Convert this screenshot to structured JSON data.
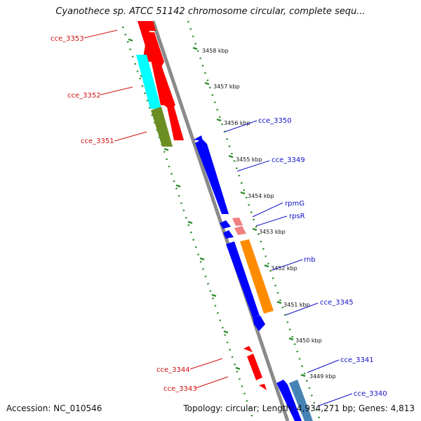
{
  "title": "Cyanothece sp. ATCC 51142 chromosome circular, complete sequ...",
  "footer": {
    "accession": "Accession: NC_010546",
    "summary": "Topology: circular; Length: 4,934,271 bp; Genes: 4,813"
  },
  "colors": {
    "backbone": "#8a8a8a",
    "scale_dots": "#2e8b2e",
    "red": "#ff0000",
    "cyan": "#00ffff",
    "olive": "#6b8e23",
    "blue": "#0000ff",
    "pink": "#f08080",
    "orange": "#ff8c00",
    "steel": "#4682b4",
    "label_red": "#d01010",
    "label_blue": "#1010c8"
  },
  "scale_labels": [
    "3458 kbp",
    "3457 kbp",
    "3456 kbp",
    "3455 kbp",
    "3454 kbp",
    "3453 kbp",
    "3452 kbp",
    "3451 kbp",
    "3450 kbp",
    "3449 kbp"
  ],
  "left_genes": [
    "cce_3353",
    "cce_3352",
    "cce_3351",
    "cce_3344",
    "cce_3343"
  ],
  "right_genes": [
    "cce_3350",
    "cce_3349",
    "rpmG",
    "rpsR",
    "rnb",
    "cce_3345",
    "cce_3341",
    "cce_3340"
  ]
}
